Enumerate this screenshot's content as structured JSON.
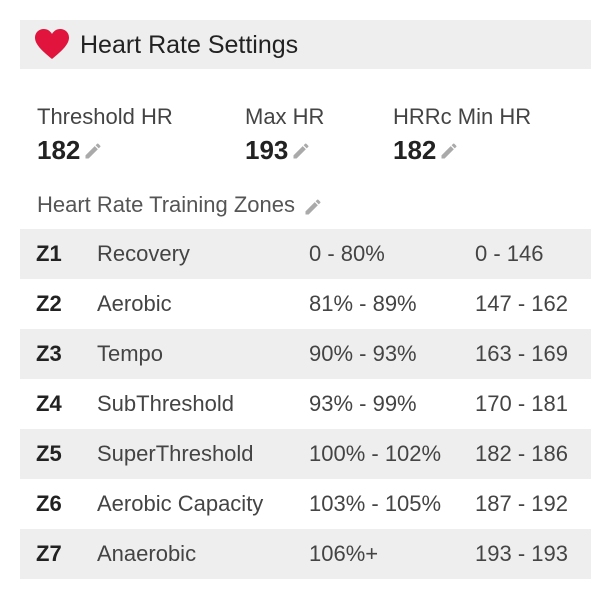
{
  "header": {
    "title": "Heart Rate Settings",
    "icon": "heart-icon",
    "icon_color": "#e0143c"
  },
  "stats": [
    {
      "label": "Threshold HR",
      "value": "182"
    },
    {
      "label": "Max HR",
      "value": "193"
    },
    {
      "label": "HRRc Min HR",
      "value": "182"
    }
  ],
  "zones_section": {
    "title": "Heart Rate Training Zones",
    "rows": [
      {
        "id": "Z1",
        "name": "Recovery",
        "percent": "0 - 80%",
        "bpm": "0 - 146"
      },
      {
        "id": "Z2",
        "name": "Aerobic",
        "percent": "81% - 89%",
        "bpm": "147 - 162"
      },
      {
        "id": "Z3",
        "name": "Tempo",
        "percent": "90% - 93%",
        "bpm": "163 - 169"
      },
      {
        "id": "Z4",
        "name": "SubThreshold",
        "percent": "93% - 99%",
        "bpm": "170 - 181"
      },
      {
        "id": "Z5",
        "name": "SuperThreshold",
        "percent": "100% - 102%",
        "bpm": "182 - 186"
      },
      {
        "id": "Z6",
        "name": "Aerobic Capacity",
        "percent": "103% - 105%",
        "bpm": "187 - 192"
      },
      {
        "id": "Z7",
        "name": "Anaerobic",
        "percent": "106%+",
        "bpm": "193 - 193"
      }
    ]
  },
  "colors": {
    "header_bg": "#eeeeee",
    "row_shade": "#eeeeee",
    "pencil": "#aaaaaa"
  }
}
